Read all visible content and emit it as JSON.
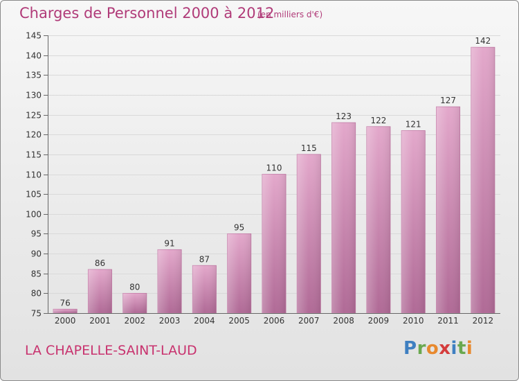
{
  "header": {
    "title": "Charges de Personnel 2000 à 2012",
    "subtitle": "(en milliers d'€)"
  },
  "footer": {
    "commune": "LA CHAPELLE-SAINT-LAUD",
    "brand": "Proxiti"
  },
  "colors": {
    "bar_top": "#e3a8cb",
    "bar_bottom": "#b06a96",
    "title": "#b03a78",
    "logo_letters": [
      "#3e7fc1",
      "#6aa84f",
      "#e8892e",
      "#d43c3c",
      "#3e7fc1",
      "#6aa84f",
      "#e8892e"
    ]
  },
  "chart_data": {
    "type": "bar",
    "title": "Charges de Personnel 2000 à 2012",
    "subtitle": "(en milliers d'€)",
    "categories": [
      "2000",
      "2001",
      "2002",
      "2003",
      "2004",
      "2005",
      "2006",
      "2007",
      "2008",
      "2009",
      "2010",
      "2011",
      "2012"
    ],
    "values": [
      76,
      86,
      80,
      91,
      87,
      95,
      110,
      115,
      123,
      122,
      121,
      127,
      142
    ],
    "data_labels": [
      "76",
      "86",
      "80",
      "91",
      "87",
      "95",
      "110",
      "115",
      "123",
      "122",
      "121",
      "127",
      "142"
    ],
    "ylim": [
      75,
      145
    ],
    "yticks": [
      75,
      80,
      85,
      90,
      95,
      100,
      105,
      110,
      115,
      120,
      125,
      130,
      135,
      140,
      145
    ],
    "xlabel": "",
    "ylabel": "",
    "grid": true
  }
}
